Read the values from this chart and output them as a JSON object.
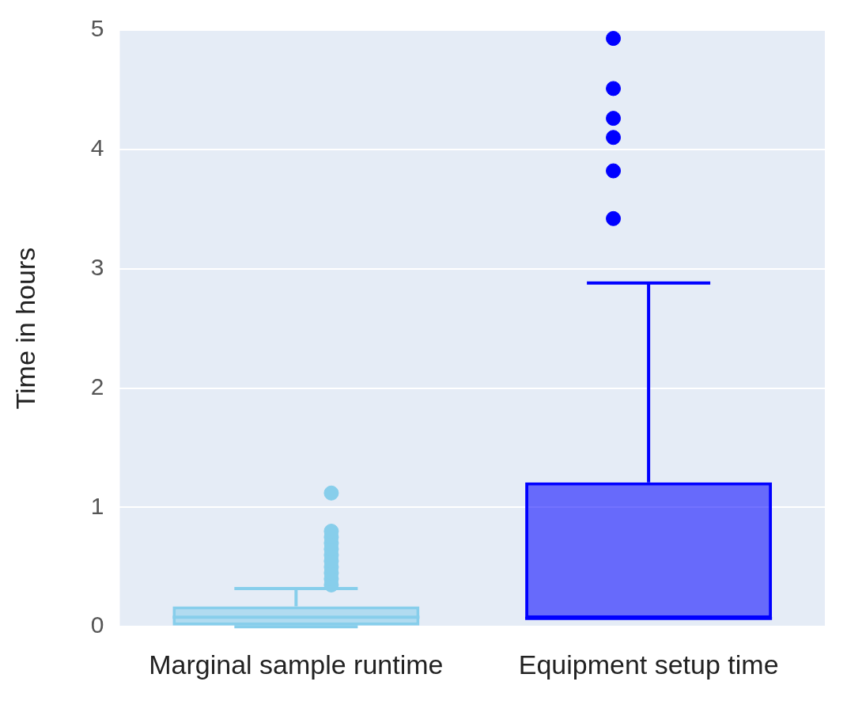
{
  "chart_data": {
    "type": "box",
    "ylabel": "Time in hours",
    "categories": [
      "Marginal sample runtime",
      "Equipment setup time"
    ],
    "colors": [
      "#87ceeb",
      "#0000ff"
    ],
    "boxes": [
      {
        "low": 0,
        "q1": 0.01,
        "median": 0.08,
        "q3": 0.17,
        "high": 0.32,
        "outliers": [
          0.35,
          0.4,
          0.45,
          0.5,
          0.55,
          0.6,
          0.65,
          0.7,
          0.75,
          0.8,
          1.12
        ]
      },
      {
        "low": 0.07,
        "q1": 0.07,
        "median": 0.07,
        "q3": 1.21,
        "high": 2.88,
        "outliers": [
          3.42,
          3.82,
          4.1,
          4.26,
          4.51,
          4.93
        ]
      }
    ],
    "ylim": [
      0,
      5
    ],
    "yticks": [
      0,
      1,
      2,
      3,
      4,
      5
    ],
    "grid": "y",
    "legend": false
  }
}
